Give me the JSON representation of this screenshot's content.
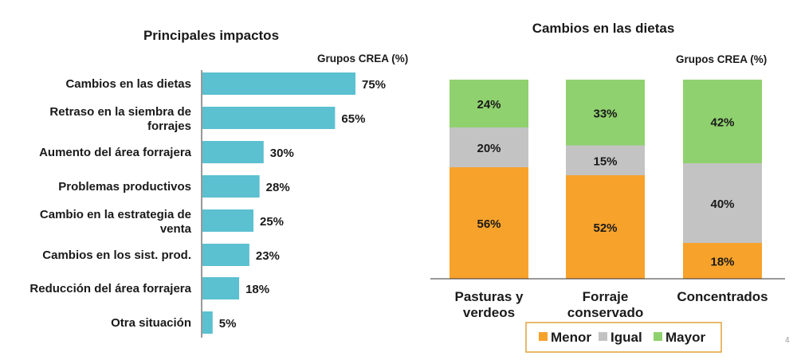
{
  "page_number": "4",
  "colors": {
    "bar": "#5bc0d0",
    "menor": "#f7a22b",
    "igual": "#c3c3c3",
    "mayor": "#8fd16e",
    "legend_border": "#e0a23a",
    "axis": "#333333"
  },
  "chart_data": [
    {
      "type": "bar",
      "orientation": "horizontal",
      "title": "Principales impactos",
      "units_label": "Grupos CREA (%)",
      "categories": [
        [
          "Cambios en las dietas"
        ],
        [
          "Retraso en la siembra de",
          "forrajes"
        ],
        [
          "Aumento del área forrajera"
        ],
        [
          "Problemas productivos"
        ],
        [
          "Cambio en la estrategia de",
          "venta"
        ],
        [
          "Cambios en los sist. prod."
        ],
        [
          "Reducción del área forrajera"
        ],
        [
          "Otra situación"
        ]
      ],
      "values": [
        75,
        65,
        30,
        28,
        25,
        23,
        18,
        5
      ],
      "value_labels": [
        "75%",
        "65%",
        "30%",
        "28%",
        "25%",
        "23%",
        "18%",
        "5%"
      ],
      "xlim": [
        0,
        100
      ]
    },
    {
      "type": "bar",
      "stacked": true,
      "title": "Cambios en las dietas",
      "units_label": "Grupos CREA (%)",
      "categories": [
        [
          "Pasturas y",
          "verdeos"
        ],
        [
          "Forraje",
          "conservado"
        ],
        [
          "Concentrados"
        ]
      ],
      "series": [
        {
          "name": "Menor",
          "color_key": "menor",
          "values": [
            56,
            52,
            18
          ],
          "labels": [
            "56%",
            "52%",
            "18%"
          ]
        },
        {
          "name": "Igual",
          "color_key": "igual",
          "values": [
            20,
            15,
            40
          ],
          "labels": [
            "20%",
            "15%",
            "40%"
          ]
        },
        {
          "name": "Mayor",
          "color_key": "mayor",
          "values": [
            24,
            33,
            42
          ],
          "labels": [
            "24%",
            "33%",
            "42%"
          ]
        }
      ],
      "ylim": [
        0,
        100
      ],
      "legend": {
        "items": [
          "Menor",
          "Igual",
          "Mayor"
        ],
        "position": "bottom"
      }
    }
  ]
}
